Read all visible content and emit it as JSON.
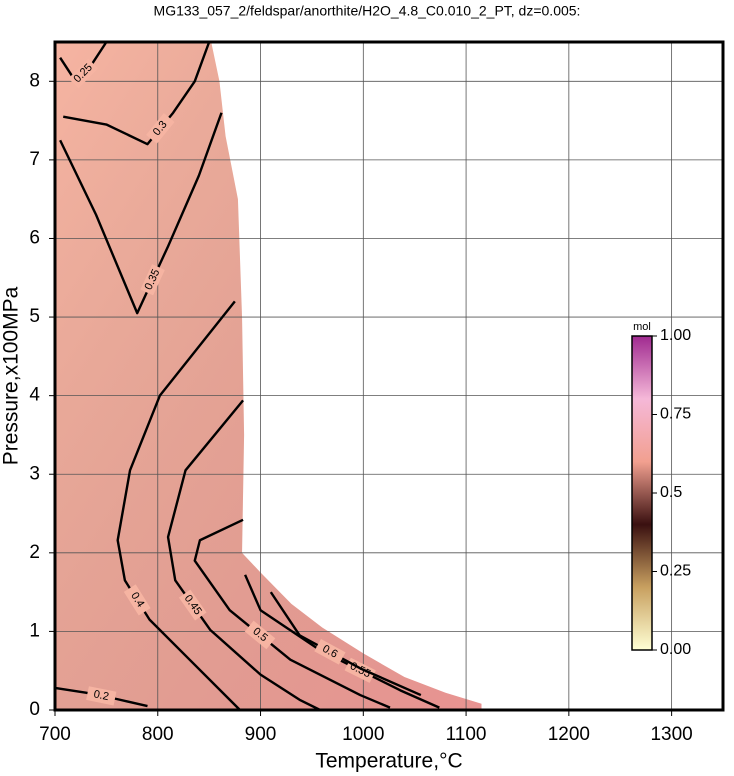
{
  "chart_data": {
    "type": "contour",
    "title": "MG133_057_2/feldspar/anorthite/H2O_4.8_C0.010_2_PT, dz=0.005:",
    "x_label": "Temperature,°C",
    "y_label": "Pressure,x100MPa",
    "xlim": [
      700,
      1350
    ],
    "xticks": [
      700,
      800,
      900,
      1000,
      1100,
      1200,
      1300
    ],
    "ylim": [
      0,
      8.5
    ],
    "yticks": [
      0,
      1,
      2,
      3,
      4,
      5,
      6,
      7,
      8
    ],
    "grid": true,
    "field": {
      "x": [
        700,
        852,
        860,
        866,
        878,
        882,
        884,
        882,
        900,
        930,
        960,
        1000,
        1040,
        1080,
        1115,
        1115,
        700
      ],
      "y": [
        8.5,
        8.5,
        8.0,
        7.3,
        6.5,
        5.0,
        3.5,
        2.0,
        1.75,
        1.35,
        1.05,
        0.72,
        0.42,
        0.22,
        0.08,
        0,
        0
      ],
      "color": "#f6b4a2"
    },
    "contours": [
      {
        "level": 0.2,
        "x": [
          700,
          730,
          760,
          790
        ],
        "y": [
          0.28,
          0.22,
          0.14,
          0.05
        ]
      },
      {
        "level": 0.25,
        "x": [
          705,
          720,
          735,
          750
        ],
        "y": [
          8.3,
          8.0,
          8.2,
          8.5
        ]
      },
      {
        "level": 0.3,
        "x": [
          708,
          750,
          790,
          815,
          836,
          850
        ],
        "y": [
          7.55,
          7.45,
          7.2,
          7.6,
          8.0,
          8.5
        ]
      },
      {
        "level": 0.35,
        "x": [
          705,
          740,
          780,
          810,
          840,
          862
        ],
        "y": [
          7.25,
          6.3,
          5.05,
          5.9,
          6.8,
          7.6
        ]
      },
      {
        "level": 0.4,
        "x": [
          875,
          802,
          773,
          761,
          768,
          792,
          831,
          870,
          880
        ],
        "y": [
          5.2,
          4.0,
          3.05,
          2.16,
          1.65,
          1.15,
          0.64,
          0.13,
          0
        ]
      },
      {
        "level": 0.45,
        "x": [
          883,
          827,
          810,
          817,
          851,
          900,
          938,
          958
        ],
        "y": [
          3.94,
          3.05,
          2.2,
          1.65,
          1.02,
          0.45,
          0.13,
          0
        ]
      },
      {
        "level": 0.5,
        "x": [
          883,
          841,
          836,
          870,
          929,
          997,
          1026
        ],
        "y": [
          2.42,
          2.16,
          1.9,
          1.27,
          0.64,
          0.19,
          0.03
        ]
      },
      {
        "level": 0.55,
        "x": [
          885,
          900,
          958,
          1036,
          1074
        ],
        "y": [
          1.72,
          1.27,
          0.76,
          0.25,
          0.03
        ]
      },
      {
        "level": 0.6,
        "x": [
          910,
          938,
          997,
          1056
        ],
        "y": [
          1.5,
          0.95,
          0.53,
          0.19
        ]
      }
    ],
    "colorbar": {
      "label": "mol",
      "lim": [
        0,
        1
      ],
      "ticks": [
        {
          "value": 0,
          "label": "0.00"
        },
        0.25,
        0.5,
        0.75,
        {
          "value": 1,
          "label": "1.00"
        }
      ],
      "colors": [
        "#ffffd4",
        "#c8a060",
        "#3a1010",
        "#f2a090",
        "#f5b8d8",
        "#a02a90"
      ]
    }
  }
}
